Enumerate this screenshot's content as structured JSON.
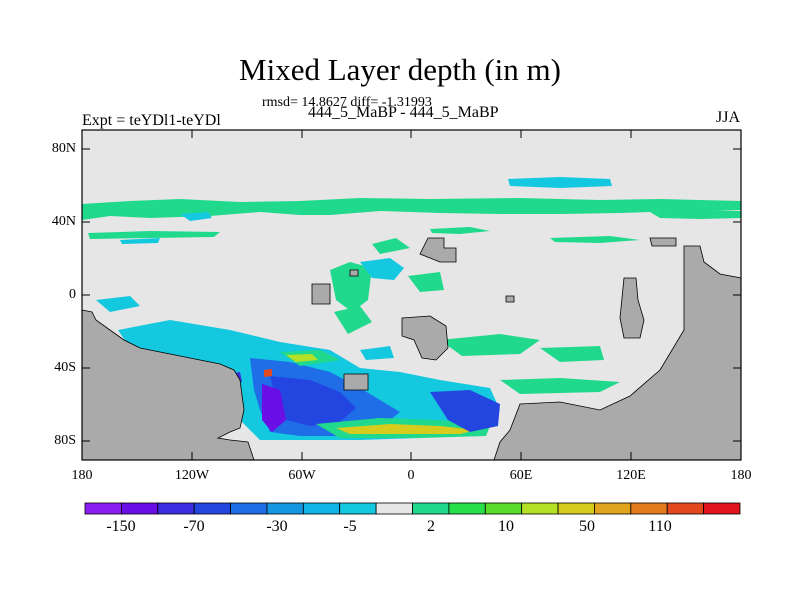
{
  "title": "Mixed Layer depth (in m)",
  "stats": "rmsd= 14.8627 diff= -1.31993",
  "subtitle": "444_5_MaBP - 444_5_MaBP",
  "experiment": "Expt = teYDl1-teYDl",
  "season": "JJA",
  "axes": {
    "y_labels": [
      "80N",
      "40N",
      "0",
      "40S",
      "80S"
    ],
    "x_labels": [
      "180",
      "120W",
      "60W",
      "0",
      "60E",
      "120E",
      "180"
    ]
  },
  "colorbar": {
    "labels": [
      "-150",
      "-70",
      "-30",
      "-5",
      "2",
      "10",
      "50",
      "110"
    ],
    "colors": [
      "#8a1ef0",
      "#6a0fe6",
      "#3c2ee0",
      "#2345e0",
      "#1f6ee8",
      "#1596e0",
      "#10b4e6",
      "#14c8e0",
      "#e6e6e6",
      "#21d98c",
      "#25e04b",
      "#5adc2a",
      "#b4e126",
      "#d6cc1e",
      "#e0a41e",
      "#e47a1e",
      "#e4481e",
      "#e0141e"
    ]
  },
  "colors": {
    "land": "#aaaaaa",
    "ocean_background": "#e6e6e6"
  }
}
